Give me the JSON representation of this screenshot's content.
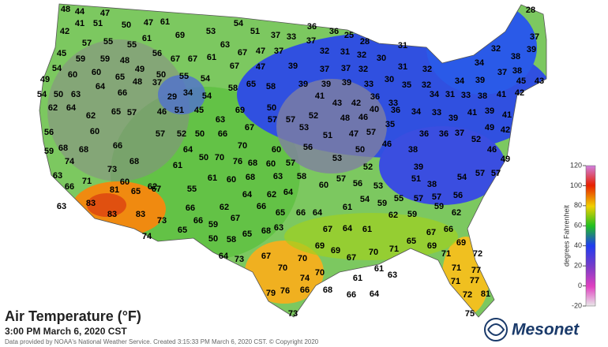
{
  "title": "Air Temperature (°F)",
  "subtitle": "3:00 PM March 6, 2020 CST",
  "credits": "Data provided by NOAA's National Weather Service. Created 3:15:33 PM March 6, 2020 CST. © Copyright 2020",
  "logo": "Mesonet",
  "legend": {
    "title": "degrees Fahrenheit",
    "lim": [
      -20,
      120
    ],
    "ticks": [
      120,
      100,
      80,
      60,
      40,
      20,
      0,
      -20
    ]
  },
  "stations": [
    48,
    44,
    47,
    28,
    54,
    36,
    36,
    25,
    42,
    41,
    51,
    50,
    47,
    61,
    69,
    53,
    51,
    37,
    33,
    37,
    28,
    37,
    57,
    55,
    55,
    61,
    63,
    31,
    32,
    39,
    45,
    59,
    59,
    48,
    56,
    67,
    67,
    61,
    67,
    47,
    37,
    32,
    31,
    32,
    30,
    38,
    34,
    54,
    60,
    49,
    67,
    47,
    39,
    37,
    37,
    32,
    31,
    32,
    37,
    38,
    65,
    50,
    55,
    54,
    49,
    60,
    58,
    65,
    58,
    39,
    39,
    39,
    33,
    30,
    35,
    32,
    34,
    39,
    45,
    43,
    54,
    50,
    63,
    64,
    48,
    37,
    66,
    29,
    34,
    54,
    41,
    43,
    42,
    36,
    33,
    34,
    31,
    33,
    38,
    41,
    42,
    62,
    64,
    62,
    65,
    57,
    46,
    51,
    45,
    69,
    50,
    52,
    48,
    46,
    40,
    36,
    34,
    33,
    39,
    41,
    39,
    41,
    56,
    60,
    57,
    52,
    50,
    63,
    66,
    67,
    57,
    57,
    53,
    51,
    47,
    57,
    35,
    36,
    36,
    37,
    52,
    49,
    42,
    59,
    68,
    68,
    66,
    64,
    70,
    60,
    56,
    50,
    46,
    38,
    46,
    74,
    68,
    61,
    50,
    70,
    76,
    68,
    60,
    57,
    53,
    52,
    39,
    49,
    73,
    63,
    57,
    57,
    54,
    66,
    71,
    60,
    62,
    55,
    61,
    60,
    68,
    63,
    58,
    60,
    57,
    56,
    53,
    51,
    38,
    81,
    65,
    67,
    64,
    62,
    64,
    54,
    59,
    55,
    57,
    57,
    56,
    83,
    63,
    66,
    62,
    66,
    65,
    66,
    64,
    61,
    62,
    59,
    59,
    62,
    83,
    83,
    73,
    66,
    67,
    63,
    67,
    64,
    61,
    67,
    66,
    65,
    59,
    65,
    68,
    58,
    50,
    74,
    65,
    69,
    69,
    69,
    67,
    70,
    71,
    69,
    71,
    72,
    73,
    64,
    67,
    70,
    70,
    70,
    74,
    61,
    61,
    63,
    71,
    77,
    71,
    77,
    79,
    76,
    66,
    68,
    66,
    64,
    72,
    81,
    73,
    75
  ]
}
